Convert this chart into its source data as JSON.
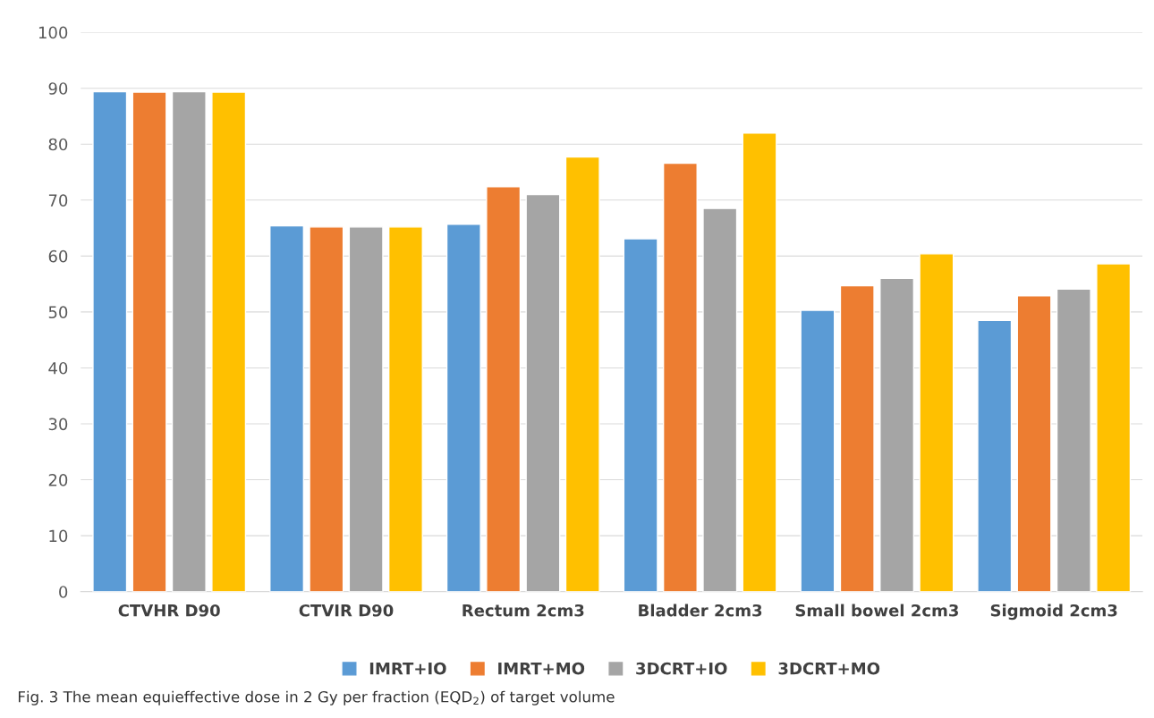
{
  "chart_data": {
    "type": "bar",
    "categories": [
      "CTVHR D90",
      "CTVIR D90",
      "Rectum 2cm3",
      "Bladder 2cm3",
      "Small bowel 2cm3",
      "Sigmoid 2cm3"
    ],
    "series": [
      {
        "name": "IMRT+IO",
        "color": "#5b9bd5",
        "values": [
          89.4,
          65.4,
          65.7,
          63.1,
          50.3,
          48.5
        ]
      },
      {
        "name": "IMRT+MO",
        "color": "#ed7d31",
        "values": [
          89.3,
          65.2,
          72.4,
          76.6,
          54.7,
          52.9
        ]
      },
      {
        "name": "3DCRT+IO",
        "color": "#a5a5a5",
        "values": [
          89.4,
          65.2,
          71.0,
          68.5,
          56.0,
          54.1
        ]
      },
      {
        "name": "3DCRT+MO",
        "color": "#ffc000",
        "values": [
          89.3,
          65.2,
          77.7,
          82.0,
          60.4,
          58.6
        ]
      }
    ],
    "ylim": [
      0,
      100
    ],
    "yticks": [
      0,
      10,
      20,
      30,
      40,
      50,
      60,
      70,
      80,
      90,
      100
    ],
    "grid": "y",
    "legend": "bottom",
    "annotations": [
      "Fig. 3 The mean equieffective dose in 2 Gy per fraction (EQD$_{2}$) of target volume"
    ]
  }
}
